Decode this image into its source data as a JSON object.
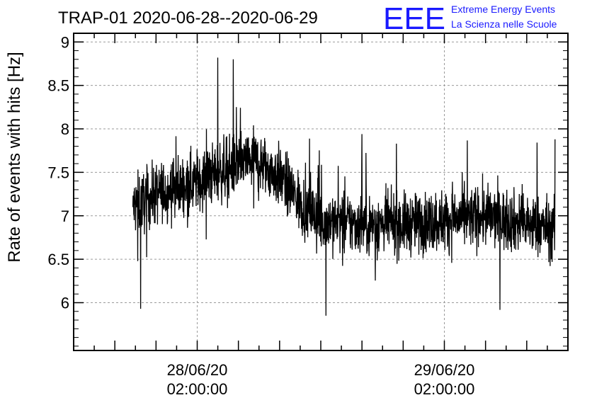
{
  "chart_data": {
    "type": "line",
    "title": "TRAP-01 2020-06-28--2020-06-29",
    "ylabel": "Rate of events with hits [Hz]",
    "xlabel": "",
    "ylim": [
      5.45,
      9.1
    ],
    "yticks": [
      6,
      6.5,
      7,
      7.5,
      8,
      8.5,
      9
    ],
    "ytick_labels": [
      "6",
      "6.5",
      "7",
      "7.5",
      "8",
      "8.5",
      "9"
    ],
    "xlim": [
      "2020-06-27T14:00:00",
      "2020-06-29T14:00:00"
    ],
    "xticks": [
      {
        "date": "28/06/20",
        "time": "02:00:00",
        "x": "2020-06-28T02:00:00"
      },
      {
        "date": "29/06/20",
        "time": "02:00:00",
        "x": "2020-06-29T02:00:00"
      }
    ],
    "grid": true,
    "series": [
      {
        "color": "#000000",
        "x_start": "2020-06-27T19:45:00",
        "x_end": "2020-06-29T12:45:00",
        "trend_points": [
          {
            "x": "2020-06-27T19:45:00",
            "y": 7.1
          },
          {
            "x": "2020-06-27T22:00:00",
            "y": 7.25
          },
          {
            "x": "2020-06-28T02:00:00",
            "y": 7.4
          },
          {
            "x": "2020-06-28T05:00:00",
            "y": 7.55
          },
          {
            "x": "2020-06-28T07:30:00",
            "y": 7.65
          },
          {
            "x": "2020-06-28T10:00:00",
            "y": 7.45
          },
          {
            "x": "2020-06-28T12:00:00",
            "y": 7.15
          },
          {
            "x": "2020-06-28T14:00:00",
            "y": 6.95
          },
          {
            "x": "2020-06-28T18:00:00",
            "y": 6.9
          },
          {
            "x": "2020-06-28T22:00:00",
            "y": 6.9
          },
          {
            "x": "2020-06-29T02:00:00",
            "y": 6.95
          },
          {
            "x": "2020-06-29T06:00:00",
            "y": 7.0
          },
          {
            "x": "2020-06-29T10:00:00",
            "y": 6.9
          },
          {
            "x": "2020-06-29T12:45:00",
            "y": 6.85
          }
        ],
        "noise_amplitude": 0.28,
        "peaks": [
          {
            "x": "2020-06-27T20:30:00",
            "y": 5.93
          },
          {
            "x": "2020-06-28T04:00:00",
            "y": 8.82
          },
          {
            "x": "2020-06-28T05:30:00",
            "y": 8.8
          },
          {
            "x": "2020-06-28T14:30:00",
            "y": 5.85
          },
          {
            "x": "2020-06-28T18:00:00",
            "y": 7.94
          },
          {
            "x": "2020-06-29T12:45:00",
            "y": 7.88
          }
        ]
      }
    ]
  },
  "logo": {
    "mark": "EEE",
    "line1": "Extreme Energy Events",
    "line2": "La Scienza nelle Scuole",
    "color": "#1a1aff"
  }
}
